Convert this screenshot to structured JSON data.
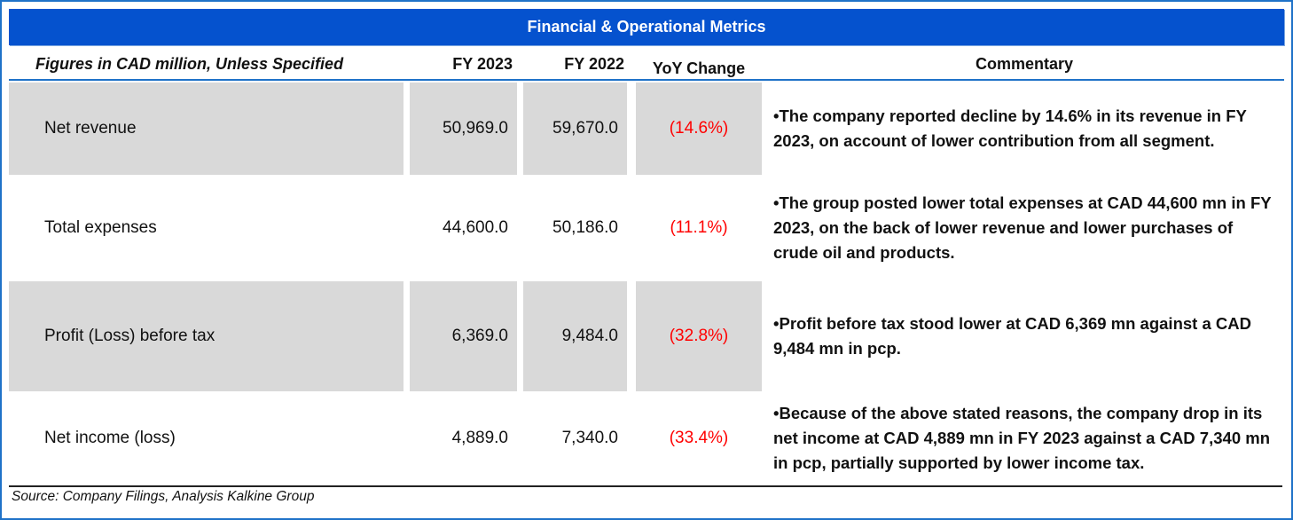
{
  "title": "Financial & Operational Metrics",
  "header": {
    "label": "Figures in CAD million, Unless Specified",
    "fy2023": "FY 2023",
    "fy2022": "FY 2022",
    "yoy": "YoY Change",
    "commentary": "Commentary"
  },
  "rows": [
    {
      "metric": "Net revenue",
      "fy2023": "50,969.0",
      "fy2022": "59,670.0",
      "yoy": "(14.6%)",
      "commentary": "•The company reported decline by 14.6% in its revenue in FY 2023, on account of lower contribution from all segment."
    },
    {
      "metric": "Total expenses",
      "fy2023": "44,600.0",
      "fy2022": "50,186.0",
      "yoy": "(11.1%)",
      "commentary": "•The group posted lower total expenses at CAD 44,600 mn in FY 2023, on the back of lower revenue and lower purchases of crude oil and products."
    },
    {
      "metric": "Profit (Loss) before tax",
      "fy2023": "6,369.0",
      "fy2022": "9,484.0",
      "yoy": "(32.8%)",
      "commentary": "•Profit before tax stood lower at CAD 6,369 mn against a CAD 9,484 mn in pcp."
    },
    {
      "metric": "Net income (loss)",
      "fy2023": "4,889.0",
      "fy2022": "7,340.0",
      "yoy": "(33.4%)",
      "commentary": "•Because of the above stated reasons, the company drop in its net income at CAD 4,889 mn in FY 2023 against a CAD 7,340 mn in pcp, partially supported by lower income tax."
    }
  ],
  "source": "Source: Company Filings, Analysis Kalkine Group",
  "colors": {
    "title_bg": "#0552ce",
    "negative": "#ff0000",
    "row_shade": "#d9d9d9"
  }
}
